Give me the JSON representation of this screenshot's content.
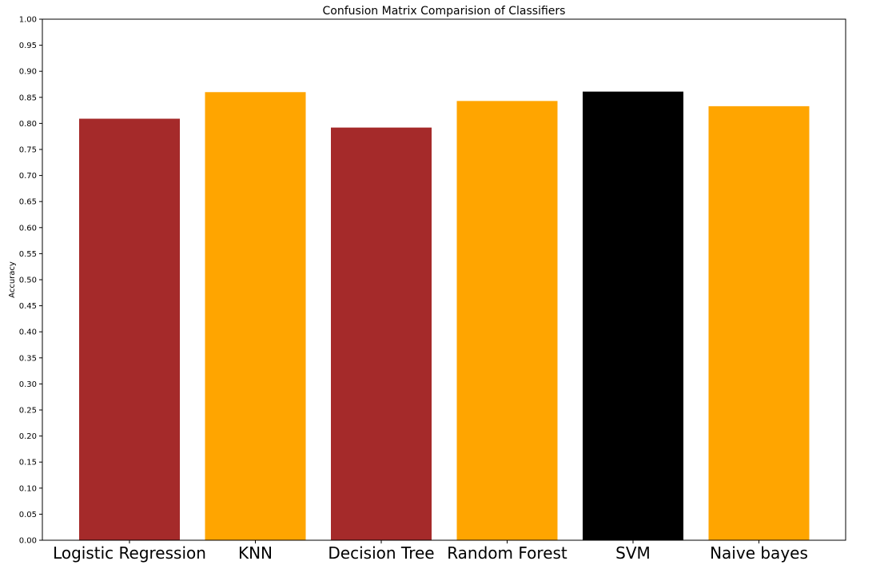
{
  "chart_data": {
    "type": "bar",
    "title": "Confusion Matrix Comparision of Classifiers",
    "xlabel": "",
    "ylabel": "Accuracy",
    "categories": [
      "Logistic Regression",
      "KNN",
      "Decision Tree",
      "Random Forest",
      "SVM",
      "Naive bayes"
    ],
    "values": [
      0.809,
      0.86,
      0.792,
      0.843,
      0.861,
      0.833
    ],
    "bar_colors": [
      "#a52a2a",
      "#ffa500",
      "#a52a2a",
      "#ffa500",
      "#000000",
      "#ffa500"
    ],
    "ylim": [
      0,
      1
    ],
    "yticks": [
      "0.00",
      "0.05",
      "0.10",
      "0.15",
      "0.20",
      "0.25",
      "0.30",
      "0.35",
      "0.40",
      "0.45",
      "0.50",
      "0.55",
      "0.60",
      "0.65",
      "0.70",
      "0.75",
      "0.80",
      "0.85",
      "0.90",
      "0.95",
      "1.00"
    ],
    "grid": false,
    "legend": "none"
  }
}
